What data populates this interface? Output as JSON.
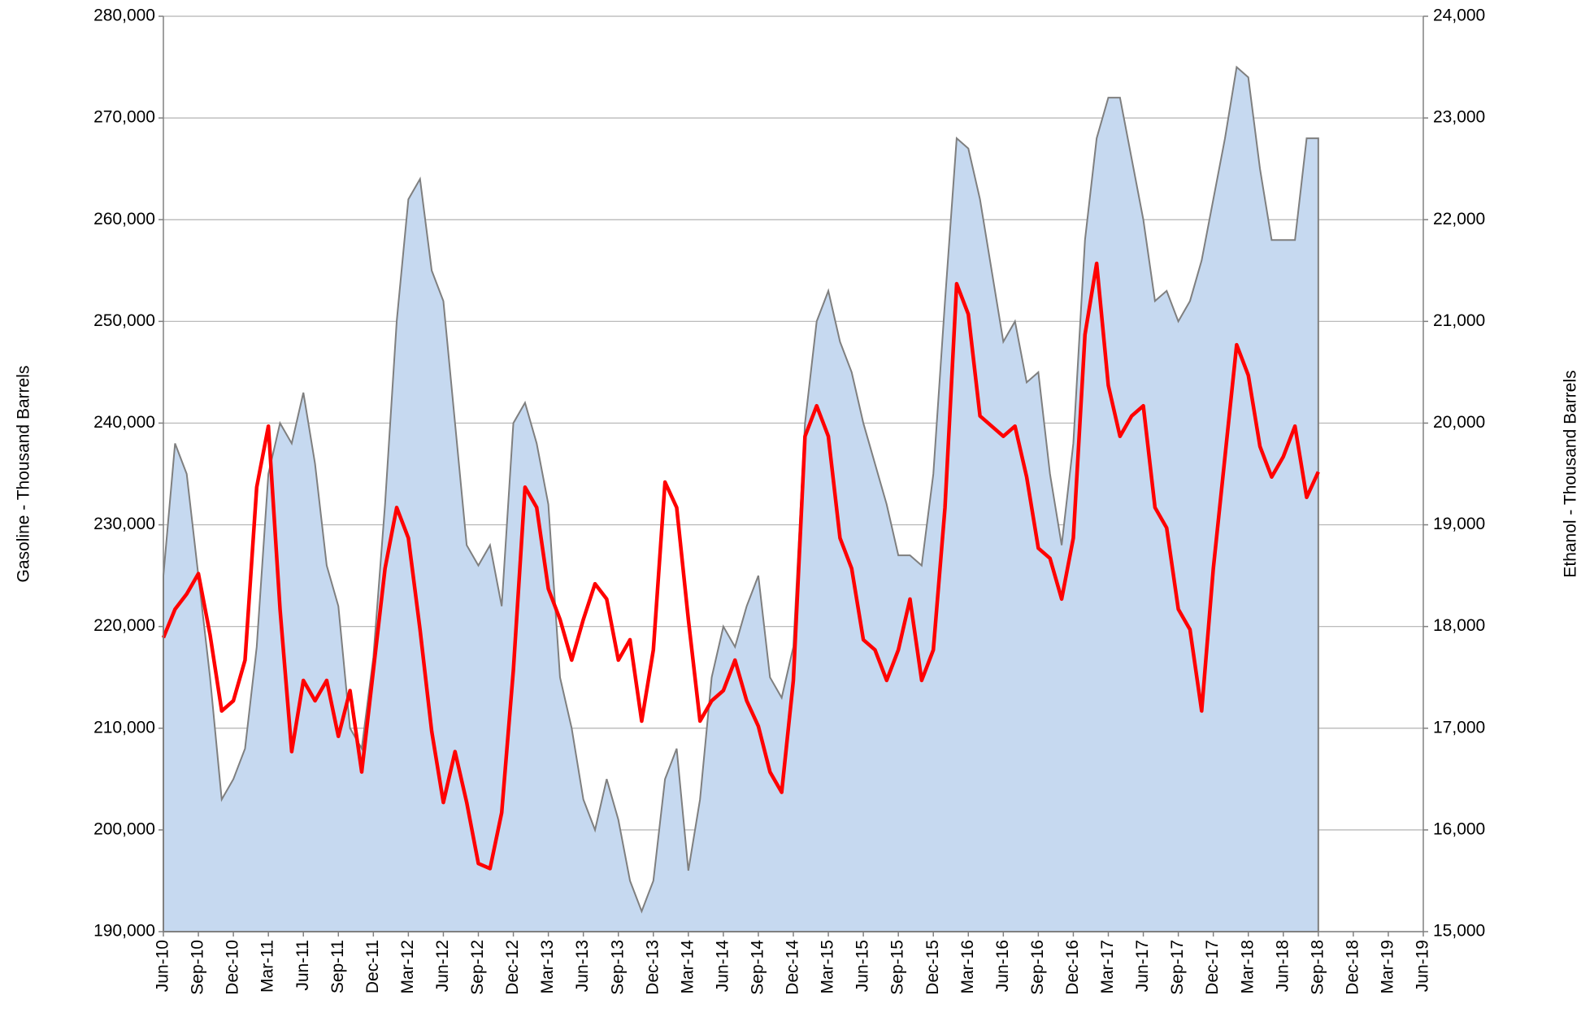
{
  "chart_data": {
    "type": "area-line",
    "ylabel": "Gasoline - Thousand Barrels",
    "y2label": "Ethanol - Thousand Barrels",
    "x": [
      "2010-06",
      "2010-07",
      "2010-08",
      "2010-09",
      "2010-10",
      "2010-11",
      "2010-12",
      "2011-01",
      "2011-02",
      "2011-03",
      "2011-04",
      "2011-05",
      "2011-06",
      "2011-07",
      "2011-08",
      "2011-09",
      "2011-10",
      "2011-11",
      "2011-12",
      "2012-01",
      "2012-02",
      "2012-03",
      "2012-04",
      "2012-05",
      "2012-06",
      "2012-07",
      "2012-08",
      "2012-09",
      "2012-10",
      "2012-11",
      "2012-12",
      "2013-01",
      "2013-02",
      "2013-03",
      "2013-04",
      "2013-05",
      "2013-06",
      "2013-07",
      "2013-08",
      "2013-09",
      "2013-10",
      "2013-11",
      "2013-12",
      "2014-01",
      "2014-02",
      "2014-03",
      "2014-04",
      "2014-05",
      "2014-06",
      "2014-07",
      "2014-08",
      "2014-09",
      "2014-10",
      "2014-11",
      "2014-12",
      "2015-01",
      "2015-02",
      "2015-03",
      "2015-04",
      "2015-05",
      "2015-06",
      "2015-07",
      "2015-08",
      "2015-09",
      "2015-10",
      "2015-11",
      "2015-12",
      "2016-01",
      "2016-02",
      "2016-03",
      "2016-04",
      "2016-05",
      "2016-06",
      "2016-07",
      "2016-08",
      "2016-09",
      "2016-10",
      "2016-11",
      "2016-12",
      "2017-01",
      "2017-02",
      "2017-03",
      "2017-04",
      "2017-05",
      "2017-06",
      "2017-07",
      "2017-08",
      "2017-09",
      "2017-10",
      "2017-11",
      "2017-12",
      "2018-01",
      "2018-02",
      "2018-03",
      "2018-04",
      "2018-05",
      "2018-06",
      "2018-07",
      "2018-08",
      "2018-09"
    ],
    "series": [
      {
        "type": "area",
        "color": "#c6d9f0",
        "line_color": "#7f7f7f",
        "values": [
          225000,
          238000,
          235000,
          225000,
          215000,
          203000,
          205000,
          208000,
          218000,
          235000,
          240000,
          238000,
          243000,
          236000,
          226000,
          222000,
          210000,
          208000,
          217000,
          232000,
          250000,
          262000,
          264000,
          255000,
          252000,
          240000,
          228000,
          226000,
          228000,
          222000,
          240000,
          242000,
          238000,
          232000,
          215000,
          210000,
          203000,
          200000,
          205000,
          201000,
          195000,
          192000,
          195000,
          205000,
          208000,
          196000,
          203000,
          215000,
          220000,
          218000,
          222000,
          225000,
          215000,
          213000,
          218000,
          240000,
          250000,
          253000,
          248000,
          245000,
          240000,
          236000,
          232000,
          227000,
          227000,
          226000,
          235000,
          252000,
          268000,
          267000,
          262000,
          255000,
          248000,
          250000,
          244000,
          245000,
          235000,
          228000,
          238000,
          258000,
          268000,
          272000,
          272000,
          266000,
          260000,
          252000,
          253000,
          250000,
          252000,
          256000,
          262000,
          268000,
          275000,
          274000,
          265000,
          258000,
          258000,
          258000,
          268000,
          268000
        ]
      },
      {
        "type": "line",
        "axis": "y2",
        "color": "#ff0000",
        "values": [
          17890,
          18170,
          18320,
          18520,
          17920,
          17170,
          17270,
          17670,
          19370,
          19970,
          18170,
          16770,
          17470,
          17270,
          17470,
          16920,
          17370,
          16570,
          17570,
          18570,
          19170,
          18870,
          17970,
          16970,
          16270,
          16770,
          16270,
          15670,
          15620,
          16170,
          17570,
          19370,
          19170,
          18370,
          18070,
          17670,
          18070,
          18420,
          18270,
          17670,
          17870,
          17070,
          17770,
          19420,
          19170,
          18070,
          17070,
          17270,
          17370,
          17670,
          17270,
          17020,
          16570,
          16370,
          17470,
          19870,
          20170,
          19870,
          18870,
          18570,
          17870,
          17770,
          17470,
          17770,
          18270,
          17470,
          17770,
          19170,
          21370,
          21070,
          20070,
          19970,
          19870,
          19970,
          19470,
          18770,
          18670,
          18270,
          18870,
          20870,
          21570,
          20370,
          19870,
          20070,
          20170,
          19170,
          18970,
          18170,
          17970,
          17170,
          18570,
          19670,
          20770,
          20470,
          19770,
          19470,
          19670,
          19970,
          19270,
          19520
        ]
      }
    ],
    "xlim": [
      "2010-06",
      "2019-06"
    ],
    "xticks": [
      {
        "value": "2010-06",
        "label": "Jun-10"
      },
      {
        "value": "2010-09",
        "label": "Sep-10"
      },
      {
        "value": "2010-12",
        "label": "Dec-10"
      },
      {
        "value": "2011-03",
        "label": "Mar-11"
      },
      {
        "value": "2011-06",
        "label": "Jun-11"
      },
      {
        "value": "2011-09",
        "label": "Sep-11"
      },
      {
        "value": "2011-12",
        "label": "Dec-11"
      },
      {
        "value": "2012-03",
        "label": "Mar-12"
      },
      {
        "value": "2012-06",
        "label": "Jun-12"
      },
      {
        "value": "2012-09",
        "label": "Sep-12"
      },
      {
        "value": "2012-12",
        "label": "Dec-12"
      },
      {
        "value": "2013-03",
        "label": "Mar-13"
      },
      {
        "value": "2013-06",
        "label": "Jun-13"
      },
      {
        "value": "2013-09",
        "label": "Sep-13"
      },
      {
        "value": "2013-12",
        "label": "Dec-13"
      },
      {
        "value": "2014-03",
        "label": "Mar-14"
      },
      {
        "value": "2014-06",
        "label": "Jun-14"
      },
      {
        "value": "2014-09",
        "label": "Sep-14"
      },
      {
        "value": "2014-12",
        "label": "Dec-14"
      },
      {
        "value": "2015-03",
        "label": "Mar-15"
      },
      {
        "value": "2015-06",
        "label": "Jun-15"
      },
      {
        "value": "2015-09",
        "label": "Sep-15"
      },
      {
        "value": "2015-12",
        "label": "Dec-15"
      },
      {
        "value": "2016-03",
        "label": "Mar-16"
      },
      {
        "value": "2016-06",
        "label": "Jun-16"
      },
      {
        "value": "2016-09",
        "label": "Sep-16"
      },
      {
        "value": "2016-12",
        "label": "Dec-16"
      },
      {
        "value": "2017-03",
        "label": "Mar-17"
      },
      {
        "value": "2017-06",
        "label": "Jun-17"
      },
      {
        "value": "2017-09",
        "label": "Sep-17"
      },
      {
        "value": "2017-12",
        "label": "Dec-17"
      },
      {
        "value": "2018-03",
        "label": "Mar-18"
      },
      {
        "value": "2018-06",
        "label": "Jun-18"
      },
      {
        "value": "2018-09",
        "label": "Sep-18"
      },
      {
        "value": "2018-12",
        "label": "Dec-18"
      },
      {
        "value": "2019-03",
        "label": "Mar-19"
      },
      {
        "value": "2019-06",
        "label": "Jun-19"
      }
    ],
    "ylim": [
      190000,
      280000
    ],
    "yticks": [
      {
        "value": 190000,
        "label": "190,000"
      },
      {
        "value": 200000,
        "label": "200,000"
      },
      {
        "value": 210000,
        "label": "210,000"
      },
      {
        "value": 220000,
        "label": "220,000"
      },
      {
        "value": 230000,
        "label": "230,000"
      },
      {
        "value": 240000,
        "label": "240,000"
      },
      {
        "value": 250000,
        "label": "250,000"
      },
      {
        "value": 260000,
        "label": "260,000"
      },
      {
        "value": 270000,
        "label": "270,000"
      },
      {
        "value": 280000,
        "label": "280,000"
      }
    ],
    "y2lim": [
      15000,
      24000
    ],
    "y2ticks": [
      {
        "value": 15000,
        "label": "15,000"
      },
      {
        "value": 16000,
        "label": "16,000"
      },
      {
        "value": 17000,
        "label": "17,000"
      },
      {
        "value": 18000,
        "label": "18,000"
      },
      {
        "value": 19000,
        "label": "19,000"
      },
      {
        "value": 20000,
        "label": "20,000"
      },
      {
        "value": 21000,
        "label": "21,000"
      },
      {
        "value": 22000,
        "label": "22,000"
      },
      {
        "value": 23000,
        "label": "23,000"
      },
      {
        "value": 24000,
        "label": "24,000"
      }
    ],
    "grid": true
  }
}
